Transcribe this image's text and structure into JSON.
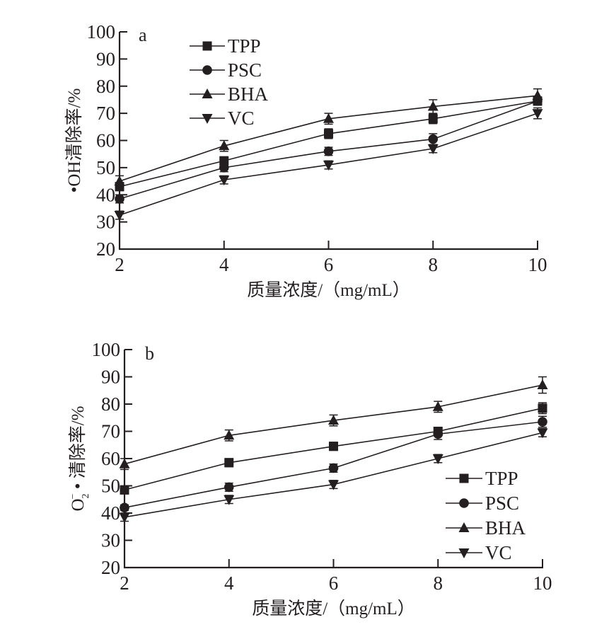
{
  "chart_data": [
    {
      "type": "line",
      "panel_label": "a",
      "title": "",
      "xlabel": "质量浓度/（mg/mL）",
      "ylabel": "•OH清除率/%",
      "x": [
        2,
        4,
        6,
        8,
        10
      ],
      "xticks": [
        "2",
        "4",
        "6",
        "8",
        "10"
      ],
      "yticks": [
        "20",
        "30",
        "40",
        "50",
        "60",
        "70",
        "80",
        "90",
        "100"
      ],
      "xlim": [
        2,
        10
      ],
      "ylim": [
        20,
        100
      ],
      "grid": false,
      "legend_position": "top-center",
      "error_bars": true,
      "series": [
        {
          "name": "TPP",
          "marker": "square",
          "values": [
            43.0,
            52.5,
            62.5,
            68.0,
            74.5
          ],
          "errors": [
            1.5,
            1.5,
            1.8,
            1.8,
            1.5
          ]
        },
        {
          "name": "PSC",
          "marker": "circle",
          "values": [
            38.5,
            50.0,
            56.0,
            60.5,
            74.5
          ],
          "errors": [
            1.5,
            1.5,
            1.5,
            2.0,
            1.5
          ]
        },
        {
          "name": "BHA",
          "marker": "triangle-up",
          "values": [
            45.0,
            58.0,
            68.0,
            72.5,
            76.5
          ],
          "errors": [
            2.0,
            2.0,
            2.0,
            2.5,
            2.5
          ]
        },
        {
          "name": "VC",
          "marker": "triangle-down",
          "values": [
            32.5,
            45.5,
            51.0,
            57.0,
            70.0
          ],
          "errors": [
            1.5,
            1.5,
            1.5,
            1.5,
            2.0
          ]
        }
      ]
    },
    {
      "type": "line",
      "panel_label": "b",
      "title": "",
      "xlabel": "质量浓度/（mg/mL）",
      "ylabel": "O₂⁻ • 清除率/%",
      "ylabel_parts": {
        "base": "O",
        "sub": "2",
        "sup": "−",
        "rest": " • 清除率/%"
      },
      "x": [
        2,
        4,
        6,
        8,
        10
      ],
      "xticks": [
        "2",
        "4",
        "6",
        "8",
        "10"
      ],
      "yticks": [
        "20",
        "30",
        "40",
        "50",
        "60",
        "70",
        "80",
        "90",
        "100"
      ],
      "xlim": [
        2,
        10
      ],
      "ylim": [
        20,
        100
      ],
      "grid": false,
      "legend_position": "bottom-right",
      "error_bars": true,
      "series": [
        {
          "name": "TPP",
          "marker": "square",
          "values": [
            48.5,
            58.5,
            64.5,
            70.0,
            78.5
          ],
          "errors": [
            1.5,
            1.5,
            1.5,
            1.5,
            2.0
          ]
        },
        {
          "name": "PSC",
          "marker": "circle",
          "values": [
            42.0,
            49.5,
            56.5,
            69.0,
            73.5
          ],
          "errors": [
            1.0,
            1.5,
            1.5,
            2.0,
            2.0
          ]
        },
        {
          "name": "BHA",
          "marker": "triangle-up",
          "values": [
            58.0,
            68.5,
            74.0,
            79.0,
            87.0
          ],
          "errors": [
            2.0,
            2.0,
            2.0,
            2.0,
            3.0
          ]
        },
        {
          "name": "VC",
          "marker": "triangle-down",
          "values": [
            38.5,
            45.0,
            50.5,
            60.0,
            69.5
          ],
          "errors": [
            1.5,
            1.5,
            1.5,
            1.5,
            1.5
          ]
        }
      ]
    }
  ]
}
